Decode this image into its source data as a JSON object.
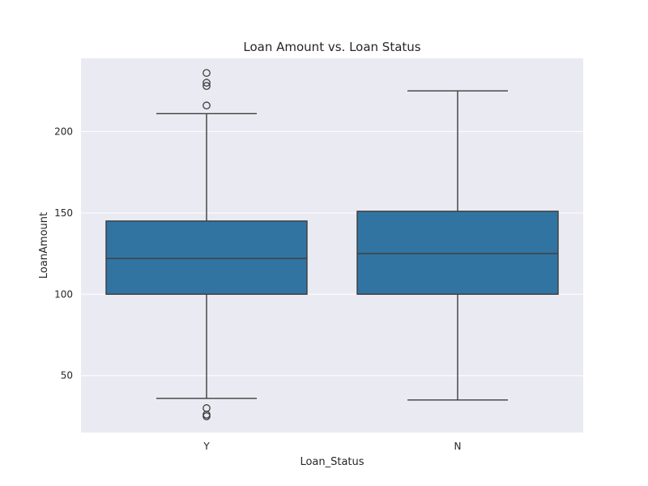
{
  "chart_data": {
    "type": "box",
    "title": "Loan Amount vs. Loan Status",
    "xlabel": "Loan_Status",
    "ylabel": "LoanAmount",
    "ylim": [
      15,
      245
    ],
    "yticks": [
      50,
      100,
      150,
      200
    ],
    "grid": true,
    "categories": [
      "Y",
      "N"
    ],
    "boxes": [
      {
        "category": "Y",
        "whisker_low": 36,
        "q1": 100,
        "median": 122,
        "q3": 145,
        "whisker_high": 211,
        "outliers": [
          216,
          228,
          230,
          236,
          30,
          26,
          25
        ]
      },
      {
        "category": "N",
        "whisker_low": 35,
        "q1": 100,
        "median": 125,
        "q3": 151,
        "whisker_high": 225,
        "outliers": []
      }
    ],
    "colors": {
      "box_fill": "#3274a1",
      "line": "#3d3d3d",
      "background": "#eaeaf2",
      "grid": "#ffffff"
    }
  }
}
